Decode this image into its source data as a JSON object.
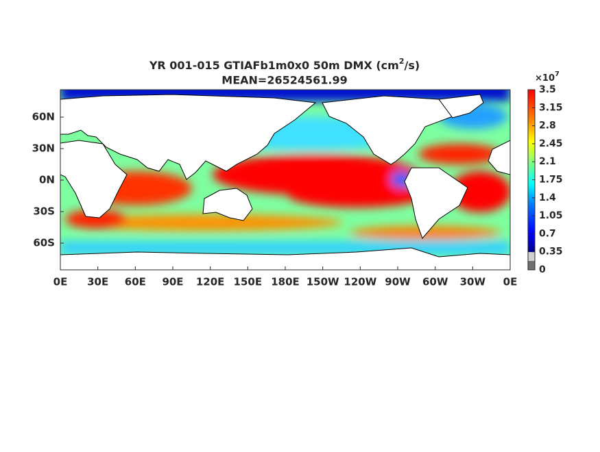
{
  "map": {
    "title": {
      "text": "YR 001-015 GTIAFb1m0x0 50m DMX (cm",
      "superscript": "2",
      "suffix": "/s)"
    },
    "subtitle": "MEAN=26524561.99",
    "x_ticks": [
      "0E",
      "30E",
      "60E",
      "90E",
      "120E",
      "150E",
      "180E",
      "150W",
      "120W",
      "90W",
      "60W",
      "30W",
      "0E"
    ],
    "y_ticks": [
      "60N",
      "30N",
      "0N",
      "30S",
      "60S"
    ],
    "colorbar": {
      "multiplier": "×10",
      "exponent": "7",
      "ticks": [
        0,
        0.35,
        0.7,
        1.05,
        1.4,
        1.75,
        2.1,
        2.45,
        2.8,
        3.15,
        3.5
      ]
    }
  }
}
